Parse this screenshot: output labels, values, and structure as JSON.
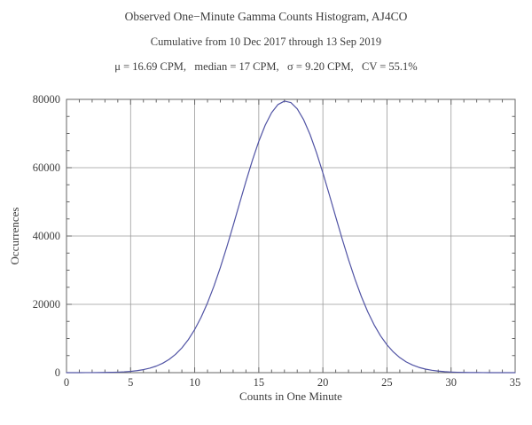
{
  "header": {
    "title": "Observed One−Minute Gamma Counts Histogram, AJ4CO",
    "subtitle": "Cumulative from 10 Dec 2017 through 13 Sep 2019",
    "stats": "μ = 16.69 CPM,   median = 17 CPM,   σ = 9.20 CPM,   CV = 55.1%"
  },
  "chart_data": {
    "type": "line",
    "title": "Observed One−Minute Gamma Counts Histogram, AJ4CO",
    "subtitle": "Cumulative from 10 Dec 2017 through 13 Sep 2019",
    "xlabel": "Counts in One Minute",
    "ylabel": "Occurrences",
    "xlim": [
      0,
      35
    ],
    "ylim": [
      0,
      80000
    ],
    "xticks": [
      0,
      5,
      10,
      15,
      20,
      25,
      30,
      35
    ],
    "yticks": [
      0,
      20000,
      40000,
      60000,
      80000
    ],
    "grid": true,
    "frame_color": "#666666",
    "grid_color": "#9a9a9a",
    "line_color": "#5053a4",
    "stats": {
      "mean_cpm": 16.69,
      "median_cpm": 17,
      "sigma_cpm": 9.2,
      "cv_percent": 55.1
    },
    "date_range": {
      "from": "10 Dec 2017",
      "to": "13 Sep 2019"
    },
    "series": [
      {
        "name": "occurrences",
        "x": [
          0,
          0.5,
          1,
          1.5,
          2,
          2.5,
          3,
          3.5,
          4,
          4.5,
          5,
          5.5,
          6,
          6.5,
          7,
          7.5,
          8,
          8.5,
          9,
          9.5,
          10,
          10.5,
          11,
          11.5,
          12,
          12.5,
          13,
          13.5,
          14,
          14.5,
          15,
          15.5,
          16,
          16.5,
          17,
          17.5,
          18,
          18.5,
          19,
          19.5,
          20,
          20.5,
          21,
          21.5,
          22,
          22.5,
          23,
          23.5,
          24,
          24.5,
          25,
          25.5,
          26,
          26.5,
          27,
          27.5,
          28,
          28.5,
          29,
          29.5,
          30,
          30.5,
          31,
          31.5,
          32,
          32.5,
          33,
          33.5,
          34,
          34.5,
          35
        ],
        "y": [
          2,
          3,
          6,
          11,
          19,
          33,
          56,
          93,
          151,
          241,
          378,
          584,
          883,
          1313,
          1918,
          2746,
          3869,
          5342,
          7245,
          9641,
          12623,
          16207,
          20435,
          25309,
          30756,
          36721,
          43045,
          49550,
          55992,
          62132,
          67700,
          72431,
          76098,
          78493,
          79505,
          79071,
          77216,
          74040,
          69709,
          64445,
          58500,
          52142,
          45635,
          39217,
          33090,
          27417,
          22305,
          17822,
          13982,
          10764,
          8139,
          6048,
          4404,
          3155,
          2220,
          1531,
          1040,
          691,
          452,
          289,
          183,
          113,
          68,
          41,
          24,
          14,
          8,
          4,
          2,
          1,
          1
        ]
      }
    ]
  }
}
